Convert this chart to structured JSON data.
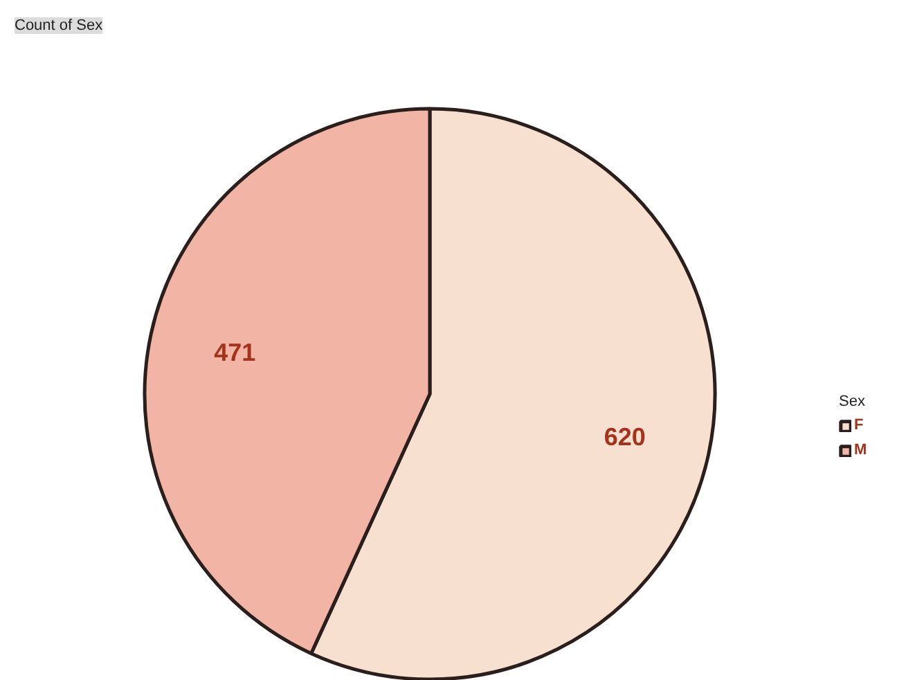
{
  "chart_data": {
    "type": "pie",
    "title": "Count of Sex",
    "legend_title": "Sex",
    "categories": [
      "F",
      "M"
    ],
    "values": [
      620,
      471
    ],
    "colors": [
      "#f8e0d0",
      "#f2b5a5"
    ],
    "data_labels": true,
    "legend": "right"
  }
}
